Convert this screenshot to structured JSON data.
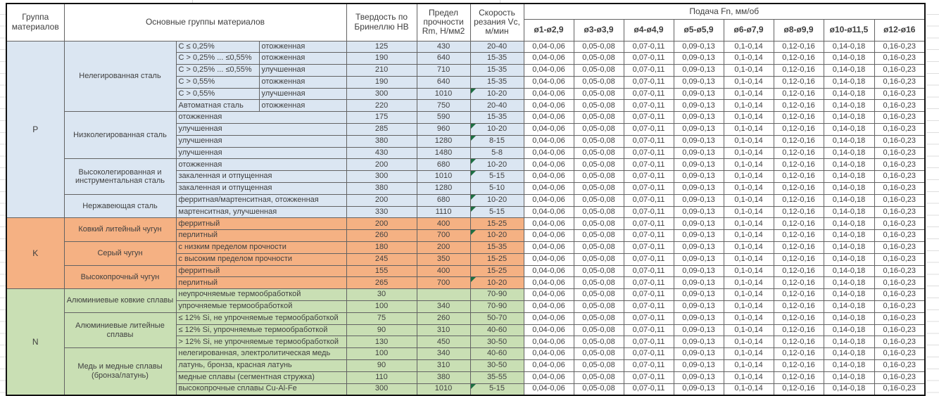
{
  "table": {
    "headers": {
      "group": "Группа материалов",
      "main_groups": "Основные группы материалов",
      "hardness": "Твердость по Бринеллю НВ",
      "strength": "Предел прочности Rm, Н/мм2",
      "speed": "Скорость резания Vc, м/мин",
      "feed": "Подача Fn, мм/об",
      "diameters": [
        "ø1-ø2,9",
        "ø3-ø3,9",
        "ø4-ø4,9",
        "ø5-ø5,9",
        "ø6-ø7,9",
        "ø8-ø9,9",
        "ø10-ø11,5",
        "ø12-ø16"
      ]
    },
    "feed_values": [
      "0,04-0,06",
      "0,05-0,08",
      "0,07-0,11",
      "0,09-0,13",
      "0,1-0,14",
      "0,12-0,16",
      "0,14-0,18",
      "0,16-0,23"
    ],
    "note_indicator_color": "#1d6f42",
    "groups": [
      {
        "code": "P",
        "color": "#dbe6f2",
        "subgroups": [
          {
            "name": "Нелегированная сталь",
            "rows": [
              {
                "d1": "C ≤ 0,25%",
                "d2": "отожженная",
                "hb": "125",
                "rm": "430",
                "vc": "20-40",
                "note": false
              },
              {
                "d1": "C > 0,25% ... ≤0,55%",
                "d2": "отожженная",
                "hb": "190",
                "rm": "640",
                "vc": "15-35",
                "note": false
              },
              {
                "d1": "C > 0,25% ... ≤0,55%",
                "d2": "улучшенная",
                "hb": "210",
                "rm": "710",
                "vc": "15-35",
                "note": false
              },
              {
                "d1": "C > 0,55%",
                "d2": "отожженная",
                "hb": "190",
                "rm": "640",
                "vc": "15-35",
                "note": false
              },
              {
                "d1": "C > 0,55%",
                "d2": "улучшенная",
                "hb": "300",
                "rm": "1010",
                "vc": "10-20",
                "note": true
              },
              {
                "d1": "Автоматная сталь",
                "d2": "отожженная",
                "hb": "220",
                "rm": "750",
                "vc": "20-40",
                "note": false
              }
            ]
          },
          {
            "name": "Низколегированная сталь",
            "rows": [
              {
                "d": "отожженная",
                "hb": "175",
                "rm": "590",
                "vc": "15-35",
                "note": false
              },
              {
                "d": "улучшенная",
                "hb": "285",
                "rm": "960",
                "vc": "10-20",
                "note": true
              },
              {
                "d": "улучшенная",
                "hb": "380",
                "rm": "1280",
                "vc": "8-15",
                "note": true
              },
              {
                "d": "улучшенная",
                "hb": "430",
                "rm": "1480",
                "vc": "5-8",
                "note": false
              }
            ]
          },
          {
            "name": "Высоколегированная и инструментальная сталь",
            "rows": [
              {
                "d": "отожженная",
                "hb": "200",
                "rm": "680",
                "vc": "10-20",
                "note": true
              },
              {
                "d": "закаленная и отпущенная",
                "hb": "300",
                "rm": "1010",
                "vc": "5-15",
                "note": true
              },
              {
                "d": "закаленная и отпущенная",
                "hb": "380",
                "rm": "1280",
                "vc": "5-10",
                "note": false
              }
            ]
          },
          {
            "name": "Нержавеющая сталь",
            "rows": [
              {
                "d": "ферритная/мартенситная, отожженная",
                "hb": "200",
                "rm": "680",
                "vc": "10-20",
                "note": true
              },
              {
                "d": "мартенситная, улучшенная",
                "hb": "330",
                "rm": "1110",
                "vc": "5-15",
                "note": true
              }
            ]
          }
        ]
      },
      {
        "code": "K",
        "color": "#f5b183",
        "subgroups": [
          {
            "name": "Ковкий литейный чугун",
            "rows": [
              {
                "d": "ферритный",
                "hb": "200",
                "rm": "400",
                "vc": "15-25",
                "note": false
              },
              {
                "d": "перлитный",
                "hb": "260",
                "rm": "700",
                "vc": "10-20",
                "note": true
              }
            ]
          },
          {
            "name": "Серый чугун",
            "rows": [
              {
                "d": "с низким пределом прочности",
                "hb": "180",
                "rm": "200",
                "vc": "15-35",
                "note": false
              },
              {
                "d": "с высоким пределом прочности",
                "hb": "245",
                "rm": "350",
                "vc": "15-25",
                "note": false
              }
            ]
          },
          {
            "name": "Высокопрочный чугун",
            "rows": [
              {
                "d": "ферритный",
                "hb": "155",
                "rm": "400",
                "vc": "15-25",
                "note": false
              },
              {
                "d": "перлитный",
                "hb": "265",
                "rm": "700",
                "vc": "10-20",
                "note": true
              }
            ]
          }
        ]
      },
      {
        "code": "N",
        "color": "#c9dfb4",
        "subgroups": [
          {
            "name": "Алюминиевые ковкие сплавы",
            "rows": [
              {
                "d": "неупрочняемые термообработкой",
                "hb": "30",
                "rm": "",
                "vc": "70-90",
                "note": false
              },
              {
                "d": "упрочняемые термообработкой",
                "hb": "100",
                "rm": "340",
                "vc": "70-90",
                "note": false
              }
            ]
          },
          {
            "name": "Алюминиевые литейные сплавы",
            "rows": [
              {
                "d": "≤ 12% Si, не упрочняемые термообработкой",
                "hb": "75",
                "rm": "260",
                "vc": "50-70",
                "note": false
              },
              {
                "d": "≤ 12% Si, упрочняемые термообработкой",
                "hb": "90",
                "rm": "310",
                "vc": "40-60",
                "note": false
              },
              {
                "d": "> 12% Si, не упрочняемые термообработкой",
                "hb": "130",
                "rm": "450",
                "vc": "30-50",
                "note": false
              }
            ]
          },
          {
            "name": "Медь и медные сплавы (бронза/латунь)",
            "rows": [
              {
                "d": "нелегированная, электролитическая медь",
                "hb": "100",
                "rm": "340",
                "vc": "40-60",
                "note": false
              },
              {
                "d": "латунь, бронза, красная латунь",
                "hb": "90",
                "rm": "310",
                "vc": "30-50",
                "note": false
              },
              {
                "d": "медные сплавы (сегментная стружка)",
                "hb": "110",
                "rm": "380",
                "vc": "35-55",
                "note": false
              },
              {
                "d": "высокопрочные сплавы Cu-Al-Fe",
                "hb": "300",
                "rm": "1010",
                "vc": "5-15",
                "note": true
              }
            ]
          }
        ]
      }
    ]
  }
}
